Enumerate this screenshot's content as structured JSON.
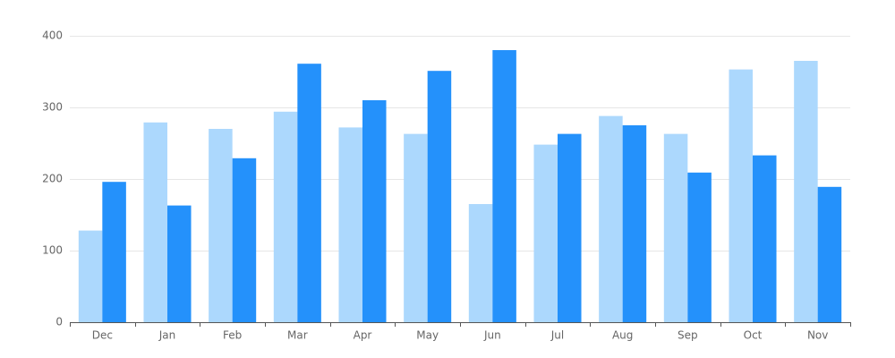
{
  "chart_data": {
    "type": "bar",
    "categories": [
      "Dec",
      "Jan",
      "Feb",
      "Mar",
      "Apr",
      "May",
      "Jun",
      "Jul",
      "Aug",
      "Sep",
      "Oct",
      "Nov"
    ],
    "series": [
      {
        "color": "#acd8fd",
        "values": [
          128,
          279,
          270,
          294,
          272,
          263,
          165,
          248,
          288,
          263,
          353,
          365
        ]
      },
      {
        "color": "#2491fb",
        "values": [
          196,
          163,
          229,
          361,
          310,
          351,
          380,
          263,
          275,
          209,
          233,
          189
        ]
      }
    ],
    "ylim": [
      0,
      400
    ],
    "yticks": [
      0,
      100,
      200,
      300,
      400
    ],
    "grid": true
  }
}
